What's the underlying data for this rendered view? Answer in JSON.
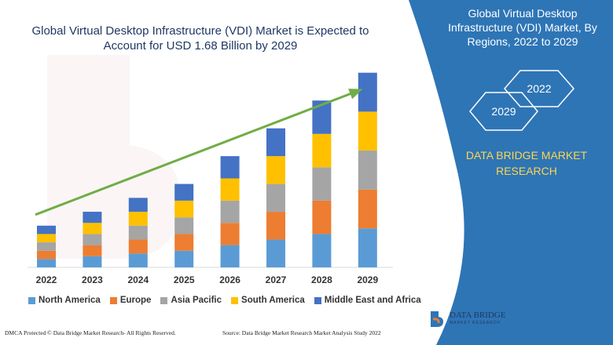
{
  "title": "Global Virtual Desktop Infrastructure (VDI) Market is Expected to Account for USD 1.68 Billion by 2029",
  "side_panel": {
    "title": "Global Virtual Desktop Infrastructure (VDI) Market, By Regions, 2022 to 2029",
    "year_start": "2022",
    "year_end": "2029",
    "brand": "DATA BRIDGE MARKET RESEARCH",
    "bg_color": "#2e75b6"
  },
  "footer": {
    "left": "DMCA Protected © Data Bridge Market Research- All Rights Reserved.",
    "right": "Source: Data Bridge Market Research Market Analysis Study 2022"
  },
  "logo": {
    "name": "DATA BRIDGE",
    "sub": "MARKET RESEARCH",
    "icon": "db-logo-icon"
  },
  "chart_data": {
    "type": "bar",
    "stacked": true,
    "categories": [
      "2022",
      "2023",
      "2024",
      "2025",
      "2026",
      "2027",
      "2028",
      "2029"
    ],
    "series": [
      {
        "name": "North America",
        "color": "#5b9bd5",
        "values": [
          3,
          4,
          5,
          6,
          8,
          10,
          12,
          14
        ]
      },
      {
        "name": "Europe",
        "color": "#ed7d31",
        "values": [
          3,
          4,
          5,
          6,
          8,
          10,
          12,
          14
        ]
      },
      {
        "name": "Asia Pacific",
        "color": "#a5a5a5",
        "values": [
          3,
          4,
          5,
          6,
          8,
          10,
          12,
          14
        ]
      },
      {
        "name": "South America",
        "color": "#ffc000",
        "values": [
          3,
          4,
          5,
          6,
          8,
          10,
          12,
          14
        ]
      },
      {
        "name": "Middle East and Africa",
        "color": "#4472c4",
        "values": [
          3,
          4,
          5,
          6,
          8,
          10,
          12,
          14
        ]
      }
    ],
    "ylim": [
      0,
      75
    ],
    "trend_arrow_color": "#70ad47",
    "legend_position": "bottom",
    "grid": false
  }
}
